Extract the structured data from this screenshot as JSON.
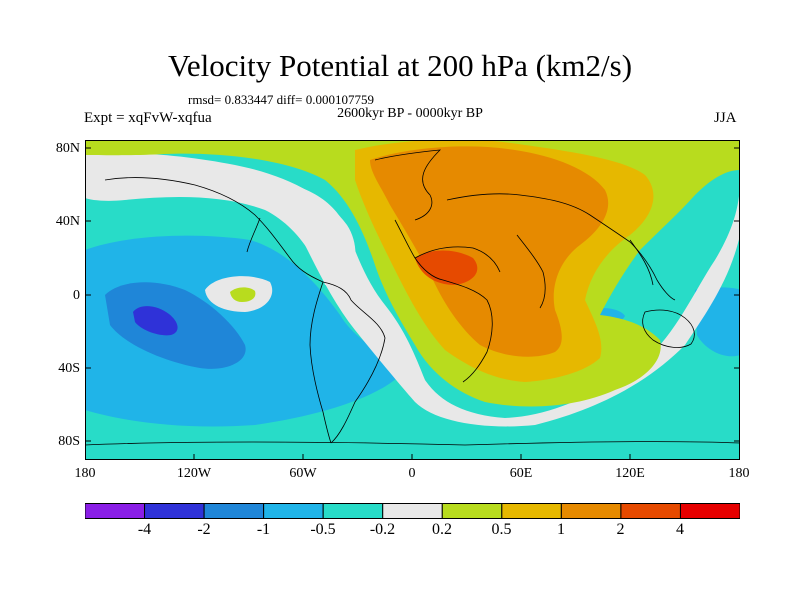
{
  "title": "Velocity Potential at 200 hPa (km2/s)",
  "stats": "rmsd= 0.833447 diff= 0.000107759",
  "subtitle": "2600kyr BP - 0000kyr BP",
  "experiment": "Expt = xqFvW-xqfua",
  "season": "JJA",
  "lat_labels": [
    "80N",
    "40N",
    "0",
    "40S",
    "80S"
  ],
  "lon_labels": [
    "180",
    "120W",
    "60W",
    "0",
    "60E",
    "120E",
    "180"
  ],
  "colorbar": {
    "labels": [
      "-4",
      "-2",
      "-1",
      "-0.5",
      "-0.2",
      "0.2",
      "0.5",
      "1",
      "2",
      "4"
    ],
    "colors": [
      "#8a1ee6",
      "#2f32d8",
      "#1f86d8",
      "#20b4e8",
      "#28dcc8",
      "#e8e8e8",
      "#b8dc1e",
      "#e6b800",
      "#e68a00",
      "#e64a00",
      "#e60000"
    ]
  }
}
